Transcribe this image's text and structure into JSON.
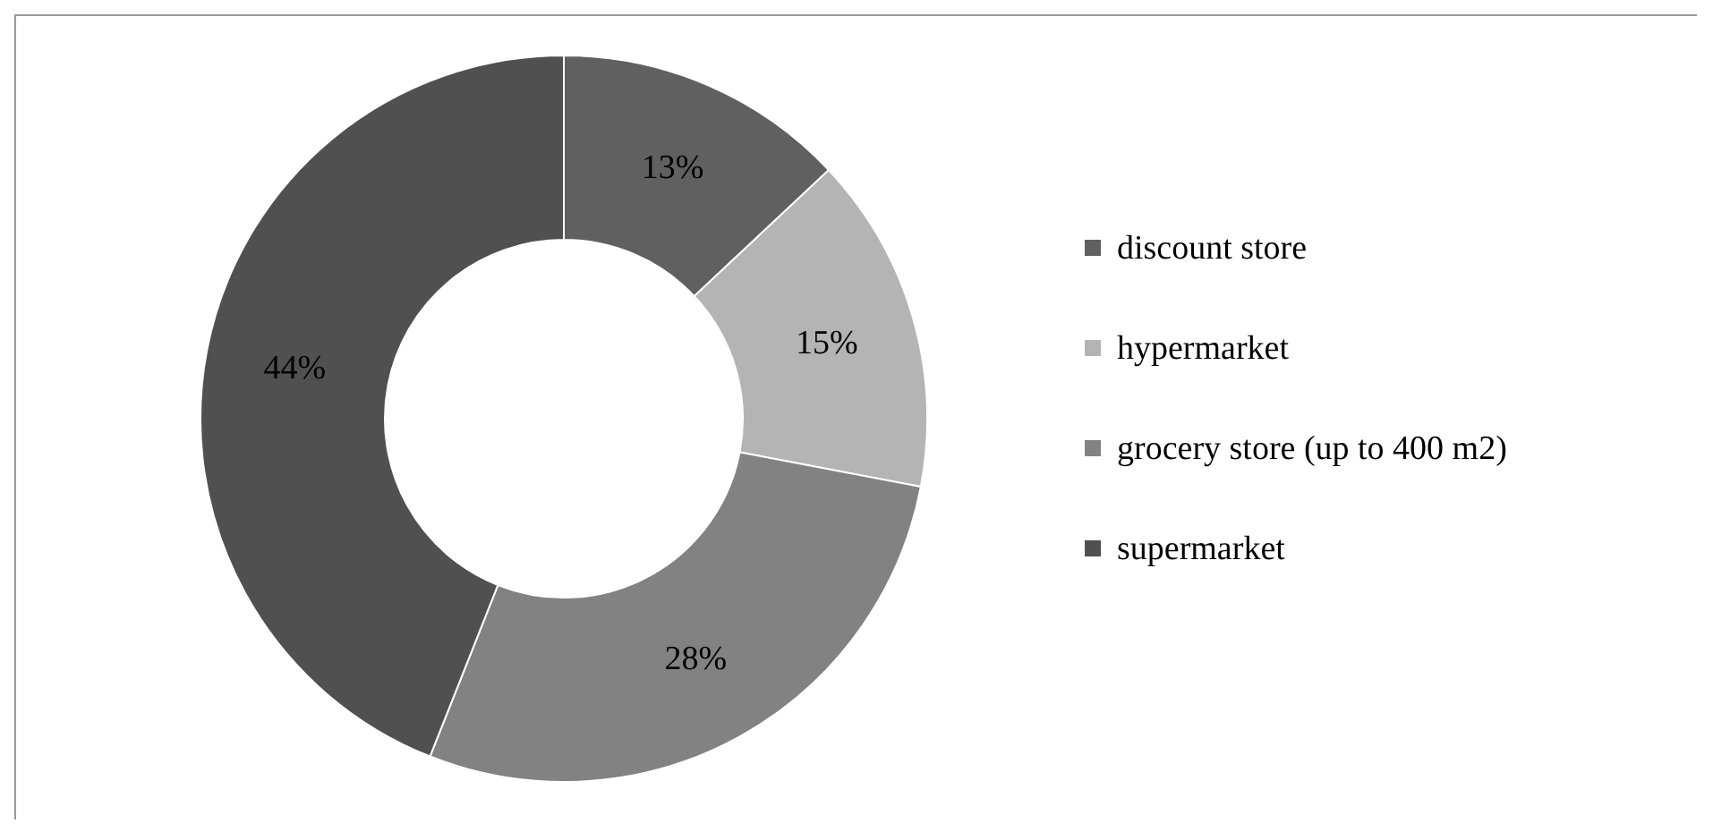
{
  "chart_data": {
    "type": "donut",
    "categories": [
      "discount store",
      "hypermarket",
      "grocery store (up to 400 m2)",
      "supermarket"
    ],
    "values": [
      13,
      15,
      28,
      44
    ],
    "colors": [
      "#606060",
      "#b4b4b4",
      "#828282",
      "#505050"
    ],
    "value_labels": [
      "13%",
      "15%",
      "28%",
      "44%"
    ],
    "legend": "right"
  }
}
